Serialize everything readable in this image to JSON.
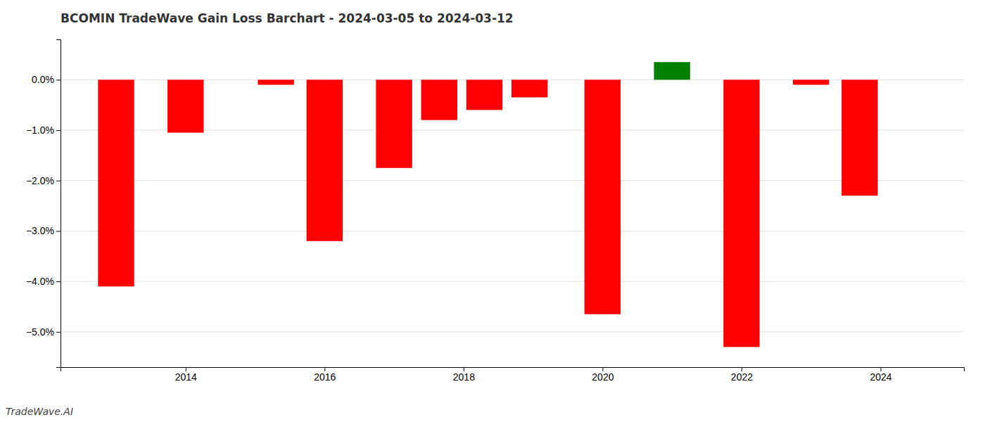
{
  "chart_data": {
    "type": "bar",
    "title": "BCOMIN TradeWave Gain Loss Barchart - 2024-03-05 to 2024-03-12",
    "x": [
      2013.0,
      2014.0,
      2015.3,
      2016.0,
      2017.0,
      2017.65,
      2018.3,
      2018.95,
      2020.0,
      2021.0,
      2022.0,
      2023.0,
      2023.7
    ],
    "values": [
      -0.041,
      -0.0105,
      -0.001,
      -0.032,
      -0.0175,
      -0.008,
      -0.006,
      -0.0035,
      -0.0465,
      0.0035,
      -0.053,
      -0.001,
      -0.023
    ],
    "colors": [
      "#ff0000",
      "#ff0000",
      "#ff0000",
      "#ff0000",
      "#ff0000",
      "#ff0000",
      "#ff0000",
      "#ff0000",
      "#ff0000",
      "#008000",
      "#ff0000",
      "#ff0000",
      "#ff0000"
    ],
    "xlim": [
      2012.2,
      2025.2
    ],
    "xticks": [
      2014,
      2016,
      2018,
      2020,
      2022,
      2024
    ],
    "ylim": [
      -0.057,
      0.008
    ],
    "yticks": [
      {
        "value": 0.0,
        "label": "0.0%"
      },
      {
        "value": -0.01,
        "label": "−1.0%"
      },
      {
        "value": -0.02,
        "label": "−2.0%"
      },
      {
        "value": -0.03,
        "label": "−3.0%"
      },
      {
        "value": -0.04,
        "label": "−4.0%"
      },
      {
        "value": -0.05,
        "label": "−5.0%"
      }
    ],
    "grid": true,
    "annotations": [
      "TradeWave.AI"
    ]
  }
}
